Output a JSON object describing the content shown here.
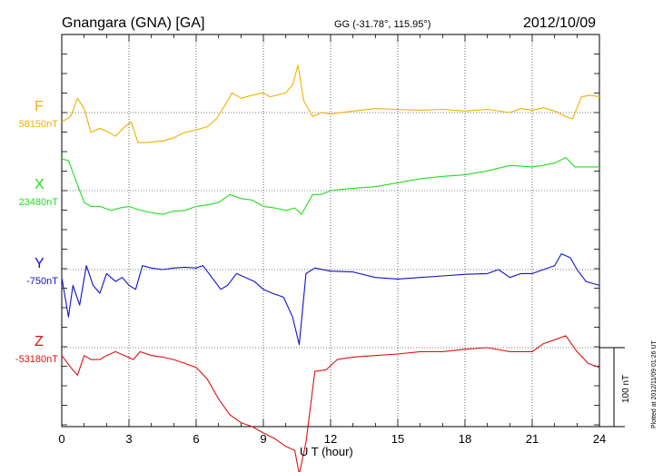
{
  "header": {
    "station": "Gnangara (GNA)  [GA]",
    "coords": "GG (-31.78°, 115.95°)",
    "date": "2012/10/09"
  },
  "side_note": "Plotted at 2012/11/09 01:26 UT",
  "scale_bar_label": "100 nT",
  "colors": {
    "F": "#f0b000",
    "X": "#22dd22",
    "Y": "#1111cc",
    "Z": "#dd1111"
  },
  "chart_data": {
    "type": "line",
    "title": "Gnangara (GNA)  [GA]",
    "xlabel": "U T (hour)",
    "xlim": [
      0,
      24
    ],
    "xticks": [
      "0",
      "3",
      "6",
      "9",
      "12",
      "15",
      "18",
      "21",
      "24"
    ],
    "grid": true,
    "scale_bar_nT": 100,
    "series": [
      {
        "name": "F",
        "baseline_label": "58150nT",
        "baseline": 58150,
        "points": [
          [
            0,
            -12
          ],
          [
            0.4,
            -5
          ],
          [
            0.7,
            18
          ],
          [
            1.0,
            5
          ],
          [
            1.3,
            -25
          ],
          [
            1.7,
            -20
          ],
          [
            2.1,
            -25
          ],
          [
            2.4,
            -30
          ],
          [
            2.8,
            -18
          ],
          [
            3.1,
            -12
          ],
          [
            3.4,
            -38
          ],
          [
            3.8,
            -38
          ],
          [
            4.5,
            -36
          ],
          [
            5.0,
            -32
          ],
          [
            5.5,
            -25
          ],
          [
            6.0,
            -22
          ],
          [
            6.5,
            -18
          ],
          [
            6.9,
            -8
          ],
          [
            7.3,
            10
          ],
          [
            7.6,
            25
          ],
          [
            8.0,
            18
          ],
          [
            8.5,
            22
          ],
          [
            9.0,
            25
          ],
          [
            9.3,
            20
          ],
          [
            9.6,
            22
          ],
          [
            10.0,
            25
          ],
          [
            10.3,
            35
          ],
          [
            10.55,
            60
          ],
          [
            10.8,
            15
          ],
          [
            11.2,
            -5
          ],
          [
            11.6,
            0
          ],
          [
            12.0,
            -2
          ],
          [
            12.5,
            0
          ],
          [
            13.0,
            2
          ],
          [
            14.0,
            5
          ],
          [
            15.0,
            4
          ],
          [
            16.0,
            3
          ],
          [
            17.0,
            4
          ],
          [
            18.0,
            2
          ],
          [
            19.0,
            4
          ],
          [
            20.0,
            0
          ],
          [
            20.5,
            5
          ],
          [
            21.0,
            3
          ],
          [
            21.5,
            6
          ],
          [
            22.0,
            2
          ],
          [
            22.5,
            -5
          ],
          [
            22.8,
            -8
          ],
          [
            23.2,
            20
          ],
          [
            23.6,
            22
          ],
          [
            24.0,
            20
          ]
        ]
      },
      {
        "name": "X",
        "baseline_label": "23480nT",
        "baseline": 23480,
        "points": [
          [
            0,
            40
          ],
          [
            0.3,
            38
          ],
          [
            0.6,
            15
          ],
          [
            1.0,
            -15
          ],
          [
            1.3,
            -20
          ],
          [
            1.7,
            -20
          ],
          [
            2.2,
            -25
          ],
          [
            2.6,
            -22
          ],
          [
            3.0,
            -20
          ],
          [
            3.4,
            -24
          ],
          [
            4.0,
            -28
          ],
          [
            4.5,
            -30
          ],
          [
            5.0,
            -26
          ],
          [
            5.5,
            -25
          ],
          [
            6.0,
            -20
          ],
          [
            6.5,
            -18
          ],
          [
            7.0,
            -15
          ],
          [
            7.5,
            -5
          ],
          [
            8.0,
            -10
          ],
          [
            8.5,
            -12
          ],
          [
            9.0,
            -20
          ],
          [
            9.5,
            -22
          ],
          [
            10.0,
            -25
          ],
          [
            10.4,
            -22
          ],
          [
            10.7,
            -30
          ],
          [
            11.2,
            -5
          ],
          [
            11.6,
            -5
          ],
          [
            12.0,
            0
          ],
          [
            13.0,
            3
          ],
          [
            14.0,
            5
          ],
          [
            15.0,
            10
          ],
          [
            16.0,
            15
          ],
          [
            17.0,
            18
          ],
          [
            18.0,
            20
          ],
          [
            19.0,
            25
          ],
          [
            20.0,
            32
          ],
          [
            21.0,
            30
          ],
          [
            21.5,
            32
          ],
          [
            22.0,
            35
          ],
          [
            22.5,
            42
          ],
          [
            22.9,
            30
          ],
          [
            23.4,
            30
          ],
          [
            24.0,
            30
          ]
        ]
      },
      {
        "name": "Y",
        "baseline_label": "-750nT",
        "baseline": -750,
        "points": [
          [
            0,
            -10
          ],
          [
            0.3,
            -60
          ],
          [
            0.5,
            -20
          ],
          [
            0.8,
            -45
          ],
          [
            1.1,
            5
          ],
          [
            1.4,
            -20
          ],
          [
            1.7,
            -30
          ],
          [
            2.0,
            -5
          ],
          [
            2.4,
            -15
          ],
          [
            2.7,
            -10
          ],
          [
            3.0,
            -20
          ],
          [
            3.3,
            -25
          ],
          [
            3.6,
            5
          ],
          [
            4.0,
            2
          ],
          [
            4.5,
            0
          ],
          [
            5.0,
            2
          ],
          [
            5.5,
            3
          ],
          [
            6.0,
            2
          ],
          [
            6.3,
            5
          ],
          [
            6.7,
            -10
          ],
          [
            7.1,
            -25
          ],
          [
            7.4,
            -20
          ],
          [
            7.8,
            -5
          ],
          [
            8.2,
            -10
          ],
          [
            8.6,
            -15
          ],
          [
            9.0,
            -25
          ],
          [
            9.4,
            -30
          ],
          [
            9.9,
            -35
          ],
          [
            10.3,
            -60
          ],
          [
            10.6,
            -95
          ],
          [
            10.9,
            -5
          ],
          [
            11.3,
            2
          ],
          [
            12.0,
            -2
          ],
          [
            13.0,
            -3
          ],
          [
            14.0,
            -10
          ],
          [
            15.0,
            -12
          ],
          [
            16.0,
            -10
          ],
          [
            17.0,
            -8
          ],
          [
            18.0,
            -6
          ],
          [
            19.0,
            -5
          ],
          [
            19.5,
            0
          ],
          [
            20.0,
            -10
          ],
          [
            20.5,
            -5
          ],
          [
            21.0,
            -5
          ],
          [
            21.5,
            0
          ],
          [
            22.0,
            5
          ],
          [
            22.3,
            20
          ],
          [
            22.7,
            15
          ],
          [
            23.0,
            0
          ],
          [
            23.4,
            -15
          ],
          [
            24.0,
            -20
          ]
        ]
      },
      {
        "name": "Z",
        "baseline_label": "-53180nT",
        "baseline": -53180,
        "points": [
          [
            0,
            -10
          ],
          [
            0.4,
            -25
          ],
          [
            0.7,
            -35
          ],
          [
            1.0,
            -10
          ],
          [
            1.3,
            -15
          ],
          [
            1.7,
            -15
          ],
          [
            2.0,
            -10
          ],
          [
            2.4,
            -5
          ],
          [
            2.8,
            -10
          ],
          [
            3.2,
            -15
          ],
          [
            3.5,
            -5
          ],
          [
            4.0,
            -10
          ],
          [
            4.5,
            -12
          ],
          [
            5.0,
            -15
          ],
          [
            5.5,
            -20
          ],
          [
            6.0,
            -25
          ],
          [
            6.5,
            -40
          ],
          [
            7.0,
            -65
          ],
          [
            7.5,
            -85
          ],
          [
            8.0,
            -95
          ],
          [
            8.5,
            -100
          ],
          [
            9.0,
            -108
          ],
          [
            9.5,
            -115
          ],
          [
            10.0,
            -125
          ],
          [
            10.4,
            -130
          ],
          [
            10.6,
            -160
          ],
          [
            10.9,
            -120
          ],
          [
            11.3,
            -30
          ],
          [
            11.8,
            -28
          ],
          [
            12.3,
            -15
          ],
          [
            13.0,
            -12
          ],
          [
            14.0,
            -10
          ],
          [
            15.0,
            -8
          ],
          [
            16.0,
            -5
          ],
          [
            17.0,
            -5
          ],
          [
            18.0,
            -2
          ],
          [
            19.0,
            0
          ],
          [
            20.0,
            -5
          ],
          [
            20.5,
            -5
          ],
          [
            21.0,
            -5
          ],
          [
            21.5,
            5
          ],
          [
            22.0,
            10
          ],
          [
            22.5,
            15
          ],
          [
            23.0,
            -5
          ],
          [
            23.5,
            -20
          ],
          [
            24.0,
            -25
          ]
        ]
      }
    ]
  }
}
